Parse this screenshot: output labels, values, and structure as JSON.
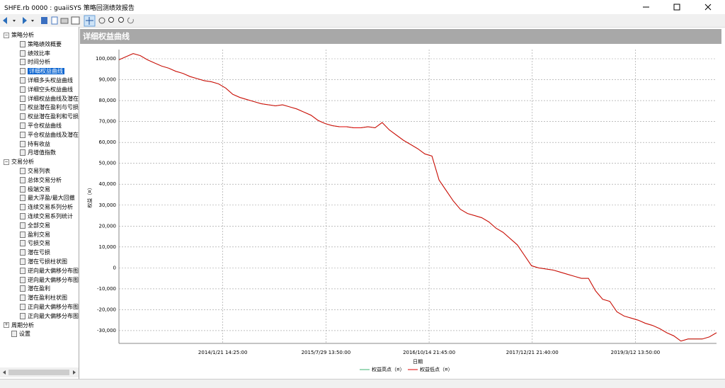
{
  "window": {
    "title": "SHFE.rb 0000 : guaiiSYS 策略回测绩效报告"
  },
  "tree": {
    "groups": [
      {
        "label": "策略分析",
        "expanded": true,
        "items": [
          "策略绩效概要",
          "绩效比率",
          "时间分析",
          "详细权益曲线",
          "详细多头权益曲线",
          "详细空头权益曲线",
          "详细权益曲线及潜在",
          "权益潜在盈利与亏损",
          "权益潜在盈利和亏损",
          "平仓权益曲线",
          "平仓权益曲线及潜在",
          "持有收益",
          "月增值指数"
        ]
      },
      {
        "label": "交易分析",
        "expanded": true,
        "items": [
          "交易列表",
          "总体交易分析",
          "极端交易",
          "最大浮盈/最大回撤",
          "连续交易系列分析",
          "连续交易系列统计",
          "全部交易",
          "盈利交易",
          "亏损交易",
          "潜在亏损",
          "潜在亏损柱状图",
          "逆向最大偏移分布图",
          "逆向最大偏移分布图",
          "潜在盈利",
          "潜在盈利柱状图",
          "正向最大偏移分布图",
          "正向最大偏移分布图"
        ]
      },
      {
        "label": "周期分析",
        "expanded": false,
        "items": []
      }
    ],
    "leaves": [
      "设置"
    ]
  },
  "panel": {
    "title": "详细权益曲线"
  },
  "chart_data": {
    "type": "line",
    "xlabel": "日期",
    "ylabel": "权益（¤）",
    "xlim": [
      0,
      84
    ],
    "xticks": [
      {
        "value": 14.6,
        "label": "2014/1/21 14:25:00"
      },
      {
        "value": 29.1,
        "label": "2015/7/29 13:50:00"
      },
      {
        "value": 43.6,
        "label": "2016/10/14 21:45:00"
      },
      {
        "value": 58.1,
        "label": "2017/12/21 21:40:00"
      },
      {
        "value": 72.6,
        "label": "2019/3/12 13:50:00"
      }
    ],
    "ylim": [
      -36100,
      104400
    ],
    "yticks": [
      {
        "value": 100000,
        "label": "100,000"
      },
      {
        "value": 90000,
        "label": "90,000"
      },
      {
        "value": 80000,
        "label": "80,000"
      },
      {
        "value": 70000,
        "label": "70,000"
      },
      {
        "value": 60000,
        "label": "60,000"
      },
      {
        "value": 50000,
        "label": "50,000"
      },
      {
        "value": 40000,
        "label": "40,000"
      },
      {
        "value": 30000,
        "label": "30,000"
      },
      {
        "value": 20000,
        "label": "20,000"
      },
      {
        "value": 10000,
        "label": "10,000"
      },
      0,
      {
        "value": -10000,
        "label": "-10,000"
      },
      {
        "value": -20000,
        "label": "-20,000"
      },
      {
        "value": -30000,
        "label": "-30,000"
      }
    ],
    "grid": true,
    "series": [
      {
        "name": "权益高点（¤）",
        "color": "#3cb371",
        "values": [
          99500,
          101000,
          102500,
          101500,
          99500,
          98000,
          96500,
          95500,
          94000,
          93000,
          91500,
          90500,
          89500,
          89000,
          88000,
          86000,
          83000,
          81500,
          80500,
          79500,
          78500,
          78000,
          77500,
          78000,
          77000,
          76000,
          74500,
          73000,
          70500,
          69000,
          68000,
          67500,
          67500,
          67000,
          67000,
          67500,
          67000,
          69500,
          66000,
          63500,
          61000,
          59000,
          57000,
          54500,
          53500,
          42000,
          37000,
          32000,
          28000,
          26000,
          25000,
          24000,
          22000,
          19000,
          17000,
          14000,
          11000,
          6000,
          1000,
          0,
          -500,
          -1000,
          -2000,
          -3000,
          -4000,
          -5000,
          -5000,
          -11000,
          -15000,
          -16000,
          -21000,
          -23000,
          -24000,
          -25000,
          -26500,
          -27500,
          -29000,
          -31000,
          -32500,
          -35000,
          -34000,
          -34000,
          -34000,
          -33000,
          -31000
        ]
      },
      {
        "name": "权益低点（¤）",
        "color": "#e00000",
        "values": [
          99500,
          101000,
          102500,
          101500,
          99500,
          98000,
          96500,
          95500,
          94000,
          93000,
          91500,
          90500,
          89500,
          89000,
          88000,
          86000,
          83000,
          81500,
          80500,
          79500,
          78500,
          78000,
          77500,
          78000,
          77000,
          76000,
          74500,
          73000,
          70500,
          69000,
          68000,
          67500,
          67500,
          67000,
          67000,
          67500,
          67000,
          69500,
          66000,
          63500,
          61000,
          59000,
          57000,
          54500,
          53500,
          42000,
          37000,
          32000,
          28000,
          26000,
          25000,
          24000,
          22000,
          19000,
          17000,
          14000,
          11000,
          6000,
          1000,
          0,
          -500,
          -1000,
          -2000,
          -3000,
          -4000,
          -5000,
          -5000,
          -11000,
          -15000,
          -16000,
          -21000,
          -23000,
          -24000,
          -25000,
          -26500,
          -27500,
          -29000,
          -31000,
          -32500,
          -35000,
          -34000,
          -34000,
          -34000,
          -33000,
          -31000
        ]
      }
    ]
  }
}
